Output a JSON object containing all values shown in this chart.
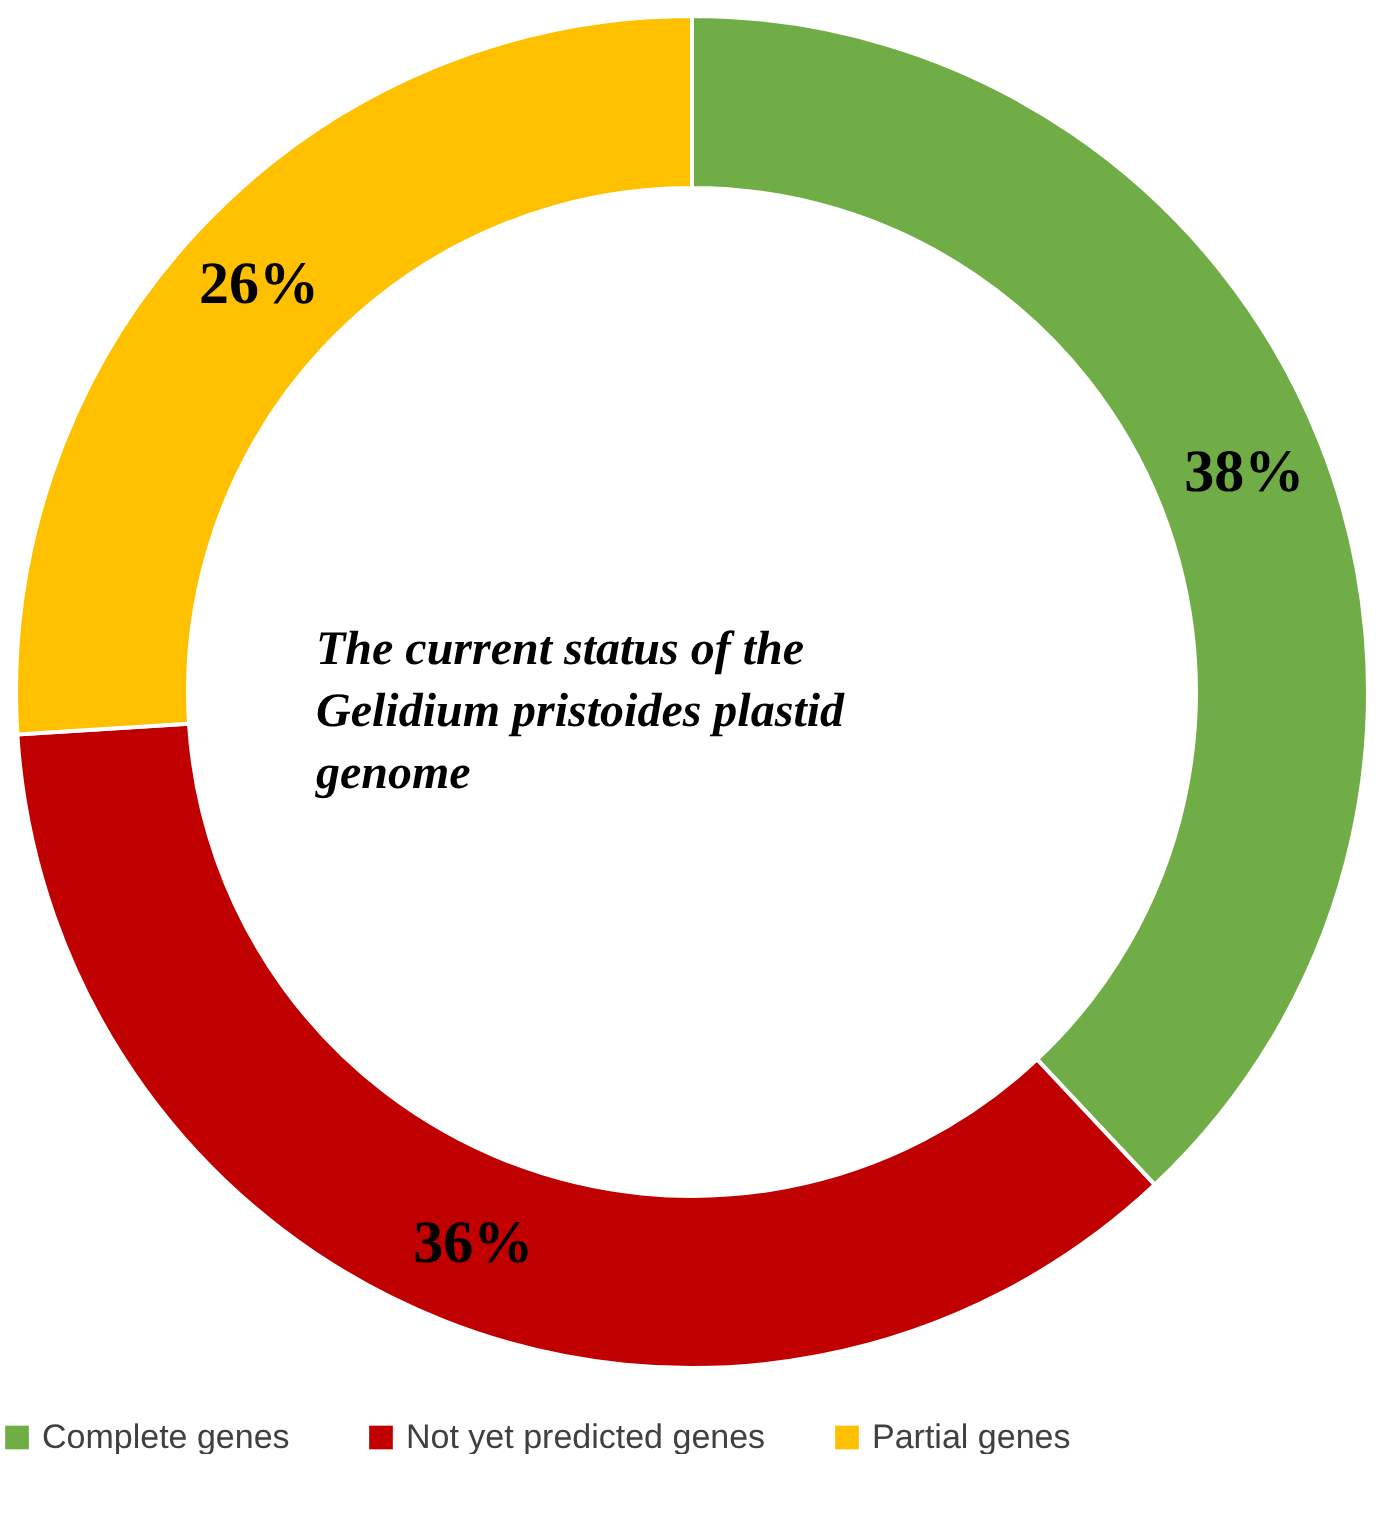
{
  "chart_data": {
    "type": "donut",
    "title": "The current status of the Gelidium pristoides plastid genome",
    "categories": [
      "Complete  genes",
      "Not yet predicted genes",
      "Partial genes"
    ],
    "values": [
      38,
      36,
      26
    ],
    "colors": [
      "#70ad47",
      "#c00000",
      "#ffc000"
    ],
    "value_labels": [
      "38%",
      "36%",
      "26%"
    ],
    "legend": "bottom"
  }
}
